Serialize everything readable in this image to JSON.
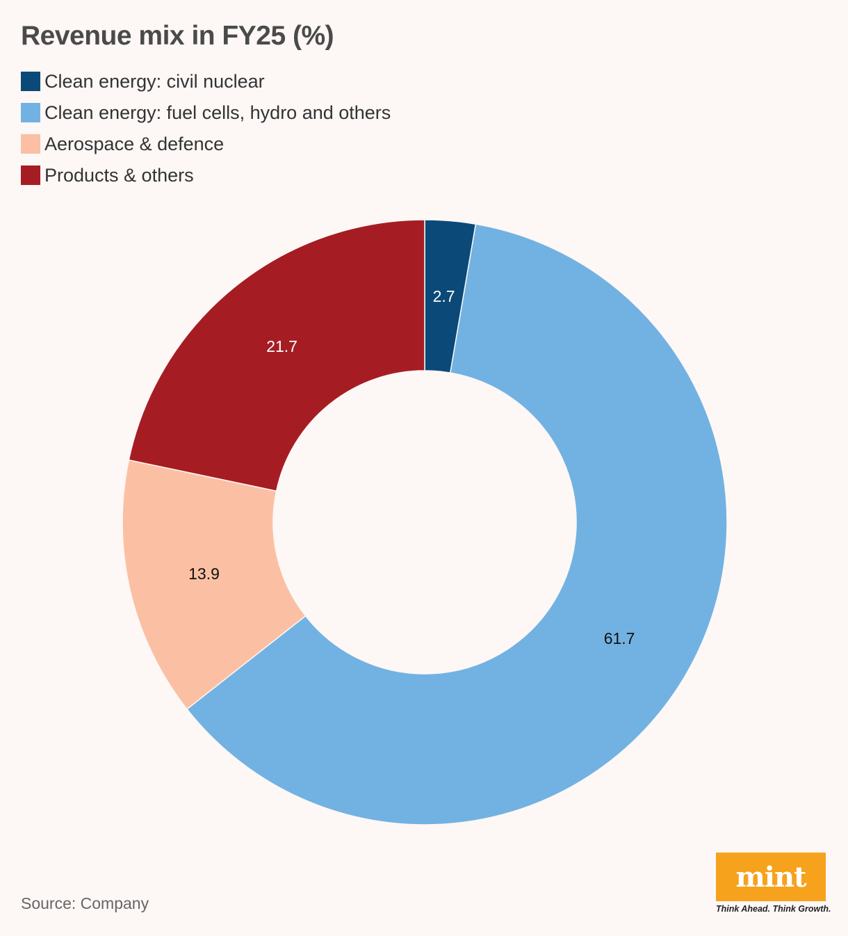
{
  "chart_data": {
    "type": "pie",
    "title": "Revenue mix in FY25 (%)",
    "categories": [
      "Clean energy: civil nuclear",
      "Clean energy: fuel cells, hydro and others",
      "Aerospace & defence",
      "Products & others"
    ],
    "values": [
      2.7,
      61.7,
      13.9,
      21.7
    ],
    "value_labels": [
      "2.7",
      "61.7",
      "13.9",
      "21.7"
    ],
    "colors": [
      "#0b4a78",
      "#72b2e2",
      "#fbc0a3",
      "#a51d23"
    ],
    "label_colors": [
      "#ffffff",
      "#111111",
      "#111111",
      "#ffffff"
    ],
    "donut": true,
    "legend_placement": "top-left",
    "source": "Source: Company"
  },
  "logo": {
    "wordmark": "mint",
    "tagline": "Think Ahead. Think Growth.",
    "color": "#f7a21c"
  }
}
